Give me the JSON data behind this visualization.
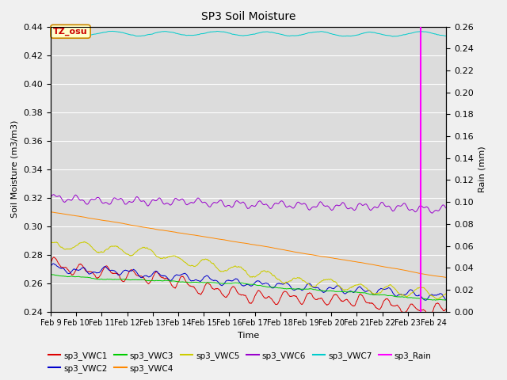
{
  "title": "SP3 Soil Moisture",
  "xlabel": "Time",
  "ylabel_left": "Soil Moisture (m3/m3)",
  "ylabel_right": "Rain (mm)",
  "ylim_left": [
    0.24,
    0.44
  ],
  "ylim_right": [
    0.0,
    0.26
  ],
  "x_tick_labels": [
    "Feb 9",
    "Feb 10",
    "Feb 11",
    "Feb 12",
    "Feb 13",
    "Feb 14",
    "Feb 15",
    "Feb 16",
    "Feb 17",
    "Feb 18",
    "Feb 19",
    "Feb 20",
    "Feb 21",
    "Feb 22",
    "Feb 23",
    "Feb 24"
  ],
  "background_color": "#dcdcdc",
  "fig_facecolor": "#f0f0f0",
  "annotation_box": {
    "text": "TZ_osu",
    "facecolor": "#ffffcc",
    "edgecolor": "#cc8800"
  },
  "series": {
    "sp3_VWC1": {
      "color": "#dd0000"
    },
    "sp3_VWC2": {
      "color": "#0000cc"
    },
    "sp3_VWC3": {
      "color": "#00cc00"
    },
    "sp3_VWC4": {
      "color": "#ff8800"
    },
    "sp3_VWC5": {
      "color": "#cccc00"
    },
    "sp3_VWC6": {
      "color": "#9900cc"
    },
    "sp3_VWC7": {
      "color": "#00cccc"
    },
    "sp3_Rain": {
      "color": "#ff00ff",
      "rain_day": 14.5
    }
  },
  "yticks_left": [
    0.24,
    0.26,
    0.28,
    0.3,
    0.32,
    0.34,
    0.36,
    0.38,
    0.4,
    0.42,
    0.44
  ],
  "yticks_right": [
    0.0,
    0.02,
    0.04,
    0.06,
    0.08,
    0.1,
    0.12,
    0.14,
    0.16,
    0.18,
    0.2,
    0.22,
    0.24,
    0.26
  ]
}
